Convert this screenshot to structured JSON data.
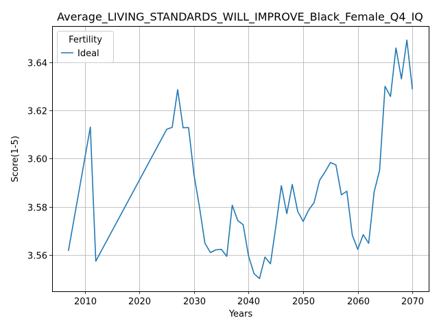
{
  "chart_data": {
    "type": "line",
    "title": "Average_LIVING_STANDARDS_WILL_IMPROVE_Black_Female_Q4_IQ",
    "xlabel": "Years",
    "ylabel": "Score(1-5)",
    "xlim": [
      2004,
      2073
    ],
    "ylim": [
      3.545,
      3.655
    ],
    "xticks": [
      2010,
      2020,
      2030,
      2040,
      2050,
      2060,
      2070
    ],
    "yticks": [
      3.56,
      3.58,
      3.6,
      3.62,
      3.64
    ],
    "grid": true,
    "legend": {
      "title": "Fertility",
      "placement": "top-left"
    },
    "series": [
      {
        "name": "Ideal",
        "color": "#1f77b4",
        "points": [
          [
            2007,
            3.562
          ],
          [
            2011,
            3.6131
          ],
          [
            2012,
            3.5575
          ],
          [
            2025,
            3.6122
          ],
          [
            2026,
            3.613
          ],
          [
            2027,
            3.6286
          ],
          [
            2028,
            3.6128
          ],
          [
            2029,
            3.6129
          ],
          [
            2030,
            3.5932
          ],
          [
            2031,
            3.5799
          ],
          [
            2032,
            3.5649
          ],
          [
            2033,
            3.5611
          ],
          [
            2034,
            3.5622
          ],
          [
            2035,
            3.5624
          ],
          [
            2036,
            3.5595
          ],
          [
            2037,
            3.5807
          ],
          [
            2038,
            3.5744
          ],
          [
            2039,
            3.5726
          ],
          [
            2040,
            3.5595
          ],
          [
            2041,
            3.5523
          ],
          [
            2042,
            3.5503
          ],
          [
            2043,
            3.5592
          ],
          [
            2044,
            3.5564
          ],
          [
            2045,
            3.572
          ],
          [
            2046,
            3.5888
          ],
          [
            2047,
            3.5772
          ],
          [
            2048,
            3.5893
          ],
          [
            2049,
            3.5781
          ],
          [
            2050,
            3.574
          ],
          [
            2051,
            3.5787
          ],
          [
            2052,
            3.5818
          ],
          [
            2053,
            3.591
          ],
          [
            2054,
            3.5945
          ],
          [
            2055,
            3.5984
          ],
          [
            2056,
            3.5974
          ],
          [
            2057,
            3.585
          ],
          [
            2058,
            3.5865
          ],
          [
            2059,
            3.5683
          ],
          [
            2060,
            3.5624
          ],
          [
            2061,
            3.5685
          ],
          [
            2062,
            3.5649
          ],
          [
            2063,
            3.5862
          ],
          [
            2064,
            3.5952
          ],
          [
            2065,
            3.63
          ],
          [
            2066,
            3.6258
          ],
          [
            2067,
            3.6459
          ],
          [
            2068,
            3.6331
          ],
          [
            2069,
            3.6492
          ],
          [
            2070,
            3.629
          ]
        ]
      }
    ]
  }
}
